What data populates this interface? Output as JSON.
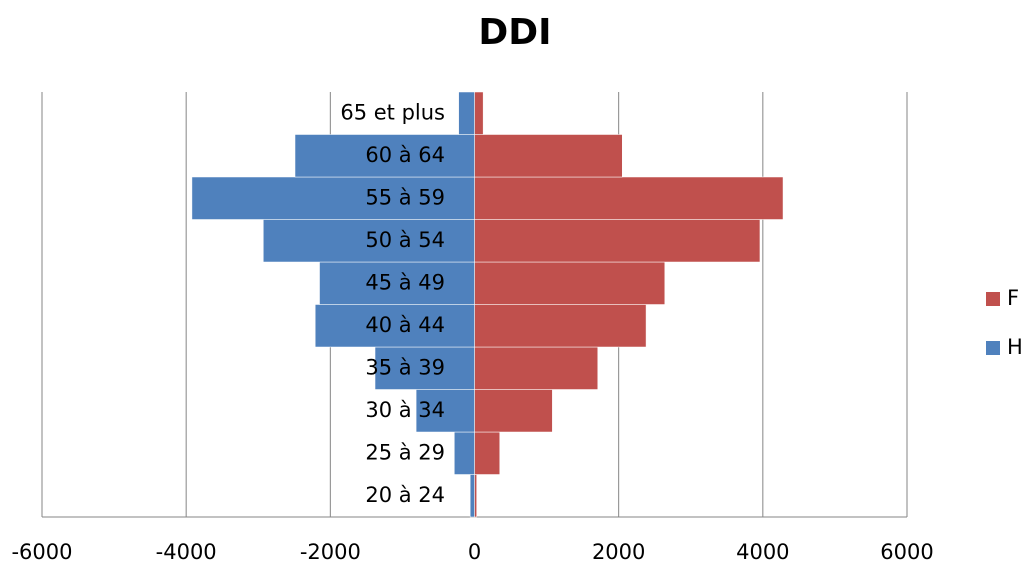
{
  "chart_data": {
    "type": "bar",
    "orientation": "horizontal",
    "title": "DDI",
    "categories": [
      "20 à 24",
      "25 à 29",
      "30 à 34",
      "35 à 39",
      "40 à 44",
      "45 à 49",
      "50 à 54",
      "55 à 59",
      "60 à 64",
      "65 et plus"
    ],
    "series": [
      {
        "name": "F",
        "color": "#c0504d",
        "values": [
          30,
          350,
          1080,
          1710,
          2380,
          2640,
          3960,
          4280,
          2050,
          120
        ]
      },
      {
        "name": "H",
        "color": "#4f81bd",
        "values": [
          -60,
          -280,
          -810,
          -1380,
          -2210,
          -2150,
          -2930,
          -3920,
          -2490,
          -220
        ]
      }
    ],
    "xlim": [
      -6000,
      6000
    ],
    "xticks": [
      -6000,
      -4000,
      -2000,
      0,
      2000,
      4000,
      6000
    ],
    "grid": true,
    "legend": "right"
  }
}
